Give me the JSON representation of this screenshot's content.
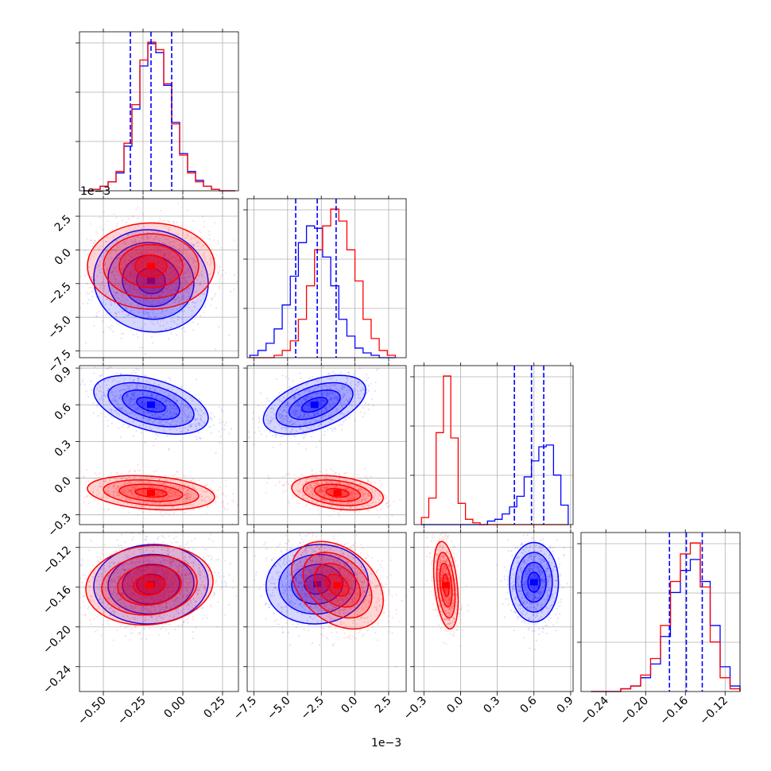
{
  "chart_data": {
    "type": "corner",
    "colors": {
      "blue": "#0000ff",
      "red": "#ff0000",
      "grid": "#b0b0b0"
    },
    "series": [
      {
        "color": "#0000ff"
      },
      {
        "color": "#ff0000"
      }
    ],
    "offset_label": "1e−3",
    "axis_ticks": [
      {
        "ticks": [
          -0.5,
          -0.25,
          0.0,
          0.25
        ],
        "labels": [
          "−0.50",
          "−0.25",
          "0.00",
          "0.25"
        ],
        "range": [
          -0.65,
          0.35
        ]
      },
      {
        "ticks": [
          -7.5,
          -5.0,
          -2.5,
          0.0,
          2.5
        ],
        "labels": [
          "−7.5",
          "−5.0",
          "−2.5",
          "0.0",
          "2.5"
        ],
        "range": [
          -8.0,
          3.8
        ]
      },
      {
        "ticks": [
          -0.3,
          0.0,
          0.3,
          0.6,
          0.9
        ],
        "labels": [
          "−0.3",
          "0.0",
          "0.3",
          "0.6",
          "0.9"
        ],
        "range": [
          -0.38,
          0.92
        ]
      },
      {
        "ticks": [
          -0.24,
          -0.2,
          -0.16,
          -0.12
        ],
        "labels": [
          "−0.24",
          "−0.20",
          "−0.16",
          "−0.12"
        ],
        "range": [
          -0.265,
          -0.105
        ]
      }
    ],
    "quantiles": [
      [
        -0.33,
        -0.2,
        -0.07
      ],
      [
        -4.4,
        -2.8,
        -1.4
      ],
      [
        0.44,
        0.58,
        0.68
      ],
      [
        -0.176,
        -0.159,
        -0.143
      ]
    ],
    "histograms": [
      {
        "edges": [
          -0.62,
          -0.57,
          -0.52,
          -0.47,
          -0.42,
          -0.37,
          -0.32,
          -0.27,
          -0.22,
          -0.17,
          -0.12,
          -0.07,
          -0.02,
          0.03,
          0.08,
          0.13,
          0.18,
          0.23,
          0.28,
          0.33
        ],
        "blue": [
          0,
          1,
          3,
          6,
          12,
          30,
          55,
          84,
          99,
          93,
          71,
          46,
          25,
          13,
          7,
          3,
          1,
          0,
          0
        ],
        "red": [
          0,
          1,
          3,
          6,
          13,
          32,
          58,
          88,
          100,
          95,
          72,
          45,
          24,
          12,
          6,
          3,
          1,
          0,
          0
        ]
      },
      {
        "edges": [
          -7.8,
          -7.2,
          -6.6,
          -6.0,
          -5.4,
          -4.8,
          -4.2,
          -3.6,
          -3.0,
          -2.4,
          -1.8,
          -1.2,
          -0.6,
          0.0,
          0.6,
          1.2,
          1.8,
          2.4,
          3.0
        ],
        "blue": [
          1,
          3,
          6,
          12,
          22,
          34,
          48,
          55,
          54,
          42,
          30,
          16,
          9,
          4,
          2,
          1,
          0,
          0
        ],
        "red": [
          0,
          0,
          0,
          1,
          3,
          7,
          16,
          30,
          45,
          55,
          62,
          57,
          45,
          32,
          16,
          8,
          3,
          1
        ]
      },
      {
        "edges": [
          -0.32,
          -0.26,
          -0.2,
          -0.14,
          -0.08,
          -0.02,
          0.04,
          0.1,
          0.16,
          0.22,
          0.28,
          0.34,
          0.4,
          0.46,
          0.52,
          0.58,
          0.64,
          0.7,
          0.76,
          0.82,
          0.88
        ],
        "blue": [
          0,
          0,
          0,
          0,
          0,
          0,
          0,
          0,
          0,
          2,
          3,
          6,
          10,
          16,
          27,
          36,
          44,
          45,
          28,
          11
        ],
        "red": [
          4,
          15,
          52,
          84,
          49,
          12,
          3,
          1,
          0,
          0,
          0,
          0,
          0,
          0,
          0,
          0,
          0,
          0,
          0,
          0
        ]
      },
      {
        "edges": [
          -0.255,
          -0.245,
          -0.235,
          -0.225,
          -0.215,
          -0.205,
          -0.195,
          -0.185,
          -0.175,
          -0.165,
          -0.155,
          -0.145,
          -0.135,
          -0.125,
          -0.115,
          -0.105
        ],
        "blue": [
          0,
          0,
          0,
          1,
          2,
          5,
          10,
          20,
          36,
          44,
          48,
          40,
          24,
          9,
          2
        ],
        "red": [
          0,
          0,
          0,
          1,
          2,
          6,
          12,
          24,
          40,
          50,
          54,
          38,
          18,
          5,
          1
        ]
      }
    ],
    "pairs": [
      {
        "row": 1,
        "col": 0,
        "blue": {
          "mean": [
            -0.2,
            -2.3
          ],
          "sd": [
            0.18,
            1.9
          ],
          "rho": -0.05
        },
        "red": {
          "mean": [
            -0.2,
            -1.2
          ],
          "sd": [
            0.2,
            1.6
          ],
          "rho": 0.0
        }
      },
      {
        "row": 2,
        "col": 0,
        "blue": {
          "mean": [
            -0.2,
            0.6
          ],
          "sd": [
            0.18,
            0.12
          ],
          "rho": -0.45
        },
        "red": {
          "mean": [
            -0.2,
            -0.12
          ],
          "sd": [
            0.2,
            0.07
          ],
          "rho": -0.25
        }
      },
      {
        "row": 2,
        "col": 1,
        "blue": {
          "mean": [
            -3.0,
            0.6
          ],
          "sd": [
            1.9,
            0.12
          ],
          "rho": 0.5
        },
        "red": {
          "mean": [
            -1.3,
            -0.12
          ],
          "sd": [
            1.7,
            0.07
          ],
          "rho": -0.3
        }
      },
      {
        "row": 3,
        "col": 0,
        "blue": {
          "mean": [
            -0.2,
            -0.157
          ],
          "sd": [
            0.18,
            0.02
          ],
          "rho": 0.05
        },
        "red": {
          "mean": [
            -0.21,
            -0.158
          ],
          "sd": [
            0.2,
            0.02
          ],
          "rho": 0.1
        }
      },
      {
        "row": 3,
        "col": 1,
        "blue": {
          "mean": [
            -2.8,
            -0.157
          ],
          "sd": [
            1.9,
            0.02
          ],
          "rho": 0.05
        },
        "red": {
          "mean": [
            -1.3,
            -0.158
          ],
          "sd": [
            1.7,
            0.022
          ],
          "rho": -0.35
        }
      },
      {
        "row": 3,
        "col": 2,
        "blue": {
          "mean": [
            0.6,
            -0.155
          ],
          "sd": [
            0.1,
            0.02
          ],
          "rho": 0.0
        },
        "red": {
          "mean": [
            -0.12,
            -0.158
          ],
          "sd": [
            0.05,
            0.022
          ],
          "rho": -0.35
        }
      }
    ]
  }
}
